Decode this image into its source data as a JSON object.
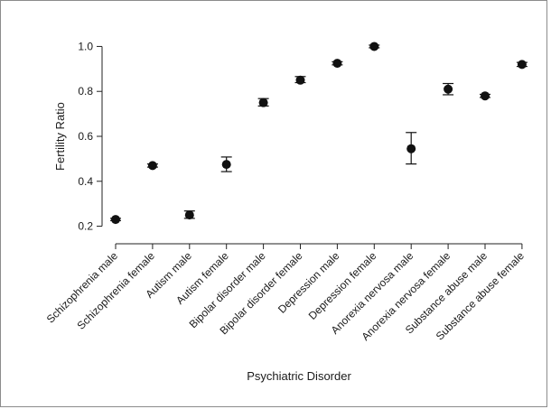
{
  "chart_data": {
    "type": "scatter",
    "title": "",
    "xlabel": "Psychiatric Disorder",
    "ylabel": "Fertility Ratio",
    "ylim": [
      0.15,
      1.05
    ],
    "yticks": [
      "0.2",
      "0.4",
      "0.6",
      "0.8",
      "1.0"
    ],
    "categories": [
      "Schizophrenia male",
      "Schizophrenia female",
      "Autism male",
      "Autism female",
      "Bipolar disorder male",
      "Bipolar disorder female",
      "Depression male",
      "Depression female",
      "Anorexia nervosa male",
      "Anorexia nervosa female",
      "Substance abuse male",
      "Substance abuse female"
    ],
    "values": [
      0.23,
      0.47,
      0.25,
      0.475,
      0.75,
      0.85,
      0.925,
      1.0,
      0.545,
      0.81,
      0.78,
      0.92
    ],
    "error_low": [
      0.225,
      0.463,
      0.235,
      0.443,
      0.735,
      0.839,
      0.918,
      0.994,
      0.477,
      0.785,
      0.773,
      0.911
    ],
    "error_high": [
      0.235,
      0.477,
      0.268,
      0.508,
      0.768,
      0.866,
      0.932,
      1.006,
      0.617,
      0.835,
      0.787,
      0.929
    ],
    "grid": false,
    "legend": "none",
    "colors": {
      "marker": "#111111",
      "axis": "#222222"
    }
  }
}
